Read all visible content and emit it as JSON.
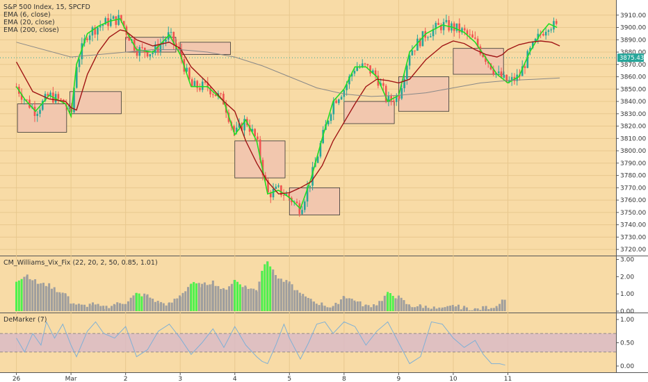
{
  "header": {
    "title": "S&P 500 Index, 15, SPCFD",
    "ema6": "EMA (6, close)",
    "ema20": "EMA (20, close)",
    "ema200": "EMA (200, close)"
  },
  "indicators": {
    "wvf_title": "CM_Williams_Vix_Fix (22, 20, 2, 50, 0.85, 1.01)",
    "dem_title": "DeMarker (7)"
  },
  "price_label": "3875.43",
  "colors": {
    "background": "#f8dba6",
    "ema6": "#22dd22",
    "ema20": "#a01414",
    "ema200": "#888888",
    "candle_up": "#26a69a",
    "candle_down": "#ef5350",
    "zone_fill": "#f2c7ae",
    "wvf_normal": "#9e9e9e",
    "wvf_alert": "#4cf24c",
    "demarker_line": "#7fb0d6",
    "demarker_band": "#d8b9c8",
    "price_badge": "#26a69a"
  },
  "chart_data": [
    {
      "type": "candlestick",
      "title": "S&P 500 Index, 15, SPCFD",
      "x_ticks": [
        "26",
        "Mar",
        "2",
        "3",
        "4",
        "5",
        "8",
        "9",
        "10",
        "11"
      ],
      "ylim": [
        3715,
        3920
      ],
      "y_ticks": [
        3720,
        3730,
        3740,
        3750,
        3760,
        3770,
        3780,
        3790,
        3800,
        3810,
        3820,
        3830,
        3840,
        3850,
        3860,
        3870,
        3880,
        3890,
        3900,
        3910
      ],
      "last_price": 3875.43,
      "series": [
        {
          "name": "EMA (6, close)",
          "x": [
            0,
            0.15,
            0.35,
            0.6,
            0.9,
            1.0,
            1.1,
            1.3,
            1.5,
            1.7,
            1.9,
            2.0,
            2.2,
            2.5,
            2.8,
            3.0,
            3.2,
            3.5,
            3.8,
            4.0,
            4.2,
            4.4,
            4.6,
            4.8,
            5.0,
            5.2,
            5.4,
            5.6,
            5.8,
            6.0,
            6.2,
            6.4,
            6.6,
            6.8,
            7.0,
            7.2,
            7.5,
            7.8,
            8.0,
            8.2,
            8.4,
            8.6,
            8.8,
            9.0,
            9.2,
            9.4,
            9.6,
            9.75,
            9.9
          ],
          "values": [
            3852,
            3842,
            3832,
            3845,
            3838,
            3828,
            3870,
            3895,
            3901,
            3905,
            3907,
            3898,
            3882,
            3880,
            3894,
            3878,
            3852,
            3852,
            3840,
            3813,
            3825,
            3808,
            3765,
            3768,
            3762,
            3753,
            3778,
            3810,
            3840,
            3850,
            3868,
            3868,
            3860,
            3840,
            3845,
            3880,
            3895,
            3902,
            3900,
            3896,
            3888,
            3875,
            3862,
            3855,
            3860,
            3880,
            3895,
            3903,
            3900
          ]
        },
        {
          "name": "EMA (20, close)",
          "x": [
            0,
            0.3,
            0.6,
            0.9,
            1.0,
            1.1,
            1.3,
            1.5,
            1.7,
            1.9,
            2.0,
            2.2,
            2.5,
            2.8,
            3.0,
            3.2,
            3.5,
            3.8,
            4.0,
            4.2,
            4.4,
            4.6,
            4.8,
            5.0,
            5.2,
            5.4,
            5.6,
            5.8,
            6.0,
            6.2,
            6.4,
            6.6,
            6.8,
            7.0,
            7.2,
            7.5,
            7.8,
            8.0,
            8.2,
            8.4,
            8.6,
            8.8,
            8.9,
            9.0,
            9.2,
            9.4,
            9.6,
            9.8,
            9.95
          ],
          "values": [
            3872,
            3848,
            3842,
            3840,
            3835,
            3833,
            3862,
            3880,
            3892,
            3898,
            3897,
            3890,
            3885,
            3888,
            3883,
            3868,
            3855,
            3840,
            3832,
            3808,
            3790,
            3775,
            3765,
            3766,
            3770,
            3775,
            3788,
            3808,
            3823,
            3838,
            3852,
            3858,
            3857,
            3855,
            3858,
            3874,
            3885,
            3889,
            3887,
            3882,
            3878,
            3876,
            3878,
            3882,
            3886,
            3888,
            3889,
            3888,
            3885
          ]
        },
        {
          "name": "EMA (200, close)",
          "x": [
            0,
            1.0,
            1.5,
            2.0,
            2.5,
            3.0,
            3.5,
            4.0,
            4.5,
            5.0,
            5.5,
            6.0,
            6.5,
            7.0,
            7.5,
            8.0,
            8.5,
            9.0,
            9.5,
            9.95
          ],
          "values": [
            3888,
            3876,
            3878,
            3880,
            3882,
            3882,
            3880,
            3876,
            3869,
            3860,
            3851,
            3846,
            3844,
            3845,
            3847,
            3851,
            3855,
            3857,
            3858,
            3859
          ]
        }
      ],
      "zones": [
        {
          "x": [
            0.02,
            0.92
          ],
          "y": [
            3815,
            3838
          ]
        },
        {
          "x": [
            0.98,
            1.92
          ],
          "y": [
            3830,
            3848
          ]
        },
        {
          "x": [
            2.0,
            2.92
          ],
          "y": [
            3880,
            3892
          ]
        },
        {
          "x": [
            3.0,
            3.92
          ],
          "y": [
            3878,
            3888
          ]
        },
        {
          "x": [
            4.0,
            4.92
          ],
          "y": [
            3778,
            3808
          ]
        },
        {
          "x": [
            5.0,
            5.92
          ],
          "y": [
            3748,
            3770
          ]
        },
        {
          "x": [
            6.0,
            6.92
          ],
          "y": [
            3822,
            3840
          ]
        },
        {
          "x": [
            7.0,
            7.92
          ],
          "y": [
            3832,
            3860
          ]
        },
        {
          "x": [
            8.0,
            8.92
          ],
          "y": [
            3862,
            3883
          ]
        }
      ]
    },
    {
      "type": "bar",
      "title": "CM_Williams_Vix_Fix (22, 20, 2, 50, 0.85, 1.01)",
      "ylim": [
        0,
        3.1
      ],
      "y_ticks": [
        0.0,
        1.0,
        2.0,
        3.0
      ],
      "y_tick_labels": [
        "0.00",
        "1.00",
        "2.00",
        "3.00"
      ],
      "x": [
        0,
        0.2,
        0.4,
        0.6,
        0.8,
        0.9,
        1.0,
        1.2,
        1.4,
        1.6,
        1.8,
        2.0,
        2.2,
        2.4,
        2.6,
        2.8,
        3.0,
        3.2,
        3.4,
        3.6,
        3.8,
        4.0,
        4.2,
        4.4,
        4.5,
        4.6,
        4.7,
        4.8,
        5.0,
        5.2,
        5.4,
        5.6,
        5.8,
        6.0,
        6.2,
        6.4,
        6.6,
        6.8,
        7.0,
        7.2,
        7.4,
        7.6,
        7.8,
        8.0,
        8.2,
        8.4,
        8.6,
        8.8,
        8.95
      ],
      "values": [
        1.8,
        2.1,
        1.6,
        1.5,
        1.1,
        1.0,
        0.5,
        0.3,
        0.4,
        0.2,
        0.4,
        0.5,
        1.0,
        0.9,
        0.5,
        0.4,
        0.9,
        1.6,
        1.5,
        1.7,
        1.2,
        1.8,
        1.4,
        1.2,
        2.4,
        3.0,
        2.3,
        1.9,
        1.6,
        1.0,
        0.6,
        0.4,
        0.2,
        0.9,
        0.6,
        0.3,
        0.4,
        1.0,
        0.8,
        0.3,
        0.3,
        0.2,
        0.1,
        0.3,
        0.2,
        0.1,
        0.2,
        0.3,
        0.8
      ],
      "alert": [
        1,
        0,
        0,
        0,
        0,
        0,
        0,
        0,
        0,
        0,
        0,
        0,
        1,
        0,
        0,
        0,
        0,
        1,
        0,
        0,
        0,
        1,
        0,
        0,
        1,
        1,
        0,
        0,
        0,
        0,
        0,
        0,
        0,
        0,
        0,
        0,
        0,
        1,
        0,
        0,
        0,
        0,
        0,
        0,
        0,
        0,
        0,
        0,
        1
      ]
    },
    {
      "type": "line",
      "title": "DeMarker (7)",
      "ylim": [
        0,
        1
      ],
      "y_ticks": [
        0.0,
        0.5,
        1.0
      ],
      "y_tick_labels": [
        "0.00",
        "0.50",
        "1.00"
      ],
      "band": [
        0.3,
        0.7
      ],
      "x": [
        0,
        0.15,
        0.3,
        0.45,
        0.55,
        0.7,
        0.85,
        1.0,
        1.1,
        1.3,
        1.45,
        1.6,
        1.8,
        2.0,
        2.2,
        2.4,
        2.6,
        2.8,
        3.0,
        3.2,
        3.4,
        3.6,
        3.8,
        4.0,
        4.2,
        4.4,
        4.5,
        4.6,
        4.75,
        4.9,
        5.0,
        5.2,
        5.35,
        5.5,
        5.65,
        5.8,
        6.0,
        6.2,
        6.4,
        6.6,
        6.8,
        7.0,
        7.2,
        7.4,
        7.6,
        7.8,
        8.0,
        8.2,
        8.4,
        8.55,
        8.7,
        8.85,
        8.95
      ],
      "values": [
        0.6,
        0.3,
        0.7,
        0.45,
        0.95,
        0.6,
        0.9,
        0.45,
        0.2,
        0.75,
        0.95,
        0.7,
        0.6,
        0.85,
        0.2,
        0.35,
        0.75,
        0.9,
        0.6,
        0.25,
        0.5,
        0.8,
        0.4,
        0.85,
        0.45,
        0.2,
        0.1,
        0.05,
        0.45,
        0.9,
        0.6,
        0.15,
        0.5,
        0.9,
        0.95,
        0.7,
        0.95,
        0.85,
        0.45,
        0.75,
        0.95,
        0.5,
        0.05,
        0.2,
        0.95,
        0.9,
        0.6,
        0.4,
        0.55,
        0.25,
        0.05,
        0.05,
        0.02
      ]
    }
  ]
}
